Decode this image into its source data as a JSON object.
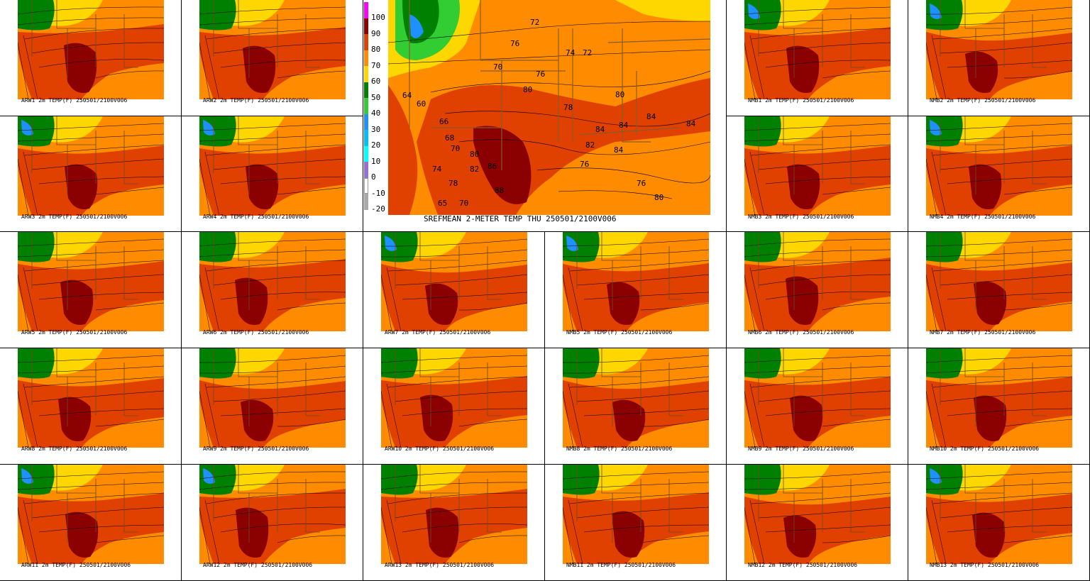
{
  "mean_map": {
    "title": "SREFMEAN 2-METER TEMP THU 250501/2100V006",
    "contour_labels": [
      "72",
      "76",
      "70",
      "74",
      "72",
      "76",
      "80",
      "80",
      "78",
      "84",
      "84",
      "84",
      "82",
      "84",
      "76",
      "76",
      "80",
      "84",
      "64",
      "60",
      "66",
      "68",
      "70",
      "74",
      "86",
      "88",
      "82",
      "80",
      "78",
      "70",
      "65"
    ],
    "legend": {
      "values": [
        "100",
        "90",
        "80",
        "70",
        "60",
        "50",
        "40",
        "30",
        "20",
        "10",
        "0",
        "-10",
        "-20"
      ],
      "colors": [
        "#ff00ff",
        "#8b0000",
        "#e04000",
        "#ff8c00",
        "#ffd700",
        "#008000",
        "#32cd32",
        "#1e90ff",
        "#00bfff",
        "#00ffff",
        "#9370db",
        "#ffffff",
        "#a9a9a9"
      ]
    }
  },
  "members": [
    {
      "label": "ARW1 2m TEMP(F) 250501/2100V006"
    },
    {
      "label": "ARW2 2m TEMP(F) 250501/2100V006"
    },
    {
      "label": "NMB1 2m TEMP(F) 250501/2100V006"
    },
    {
      "label": "NMB2 2m TEMP(F) 250501/2100V006"
    },
    {
      "label": "ARW3 2m TEMP(F) 250501/2100V006"
    },
    {
      "label": "ARW4 2m TEMP(F) 250501/2100V006"
    },
    {
      "label": "NMB3 2m TEMP(F) 250501/2100V006"
    },
    {
      "label": "NMB4 2m TEMP(F) 250501/2100V006"
    },
    {
      "label": "ARW5 2m TEMP(F) 250501/2100V006"
    },
    {
      "label": "ARW6 2m TEMP(F) 250501/2100V006"
    },
    {
      "label": "ARW7 2m TEMP(F) 250501/2100V006"
    },
    {
      "label": "NMB5 2m TEMP(F) 250501/2100V006"
    },
    {
      "label": "NMB6 2m TEMP(F) 250501/2100V006"
    },
    {
      "label": "NMB7 2m TEMP(F) 250501/2100V006"
    },
    {
      "label": "ARW8 2m TEMP(F) 250501/2100V006"
    },
    {
      "label": "ARW9 2m TEMP(F) 250501/2100V006"
    },
    {
      "label": "ARW10 2m TEMP(F) 250501/2100V006"
    },
    {
      "label": "NMB8 2m TEMP(F) 250501/2100V006"
    },
    {
      "label": "NMB9 2m TEMP(F) 250501/2100V006"
    },
    {
      "label": "NMB10 2m TEMP(F) 250501/2100V006"
    },
    {
      "label": "ARW11 2m TEMP(F) 250501/2100V006"
    },
    {
      "label": "ARW12 2m TEMP(F) 250501/2100V006"
    },
    {
      "label": "ARW13 2m TEMP(F) 250501/2100V006"
    },
    {
      "label": "NMB11 2m TEMP(F) 250501/2100V006"
    },
    {
      "label": "NMB12 2m TEMP(F) 250501/2100V006"
    },
    {
      "label": "NMB13 2m TEMP(F) 250501/2100V006"
    }
  ]
}
